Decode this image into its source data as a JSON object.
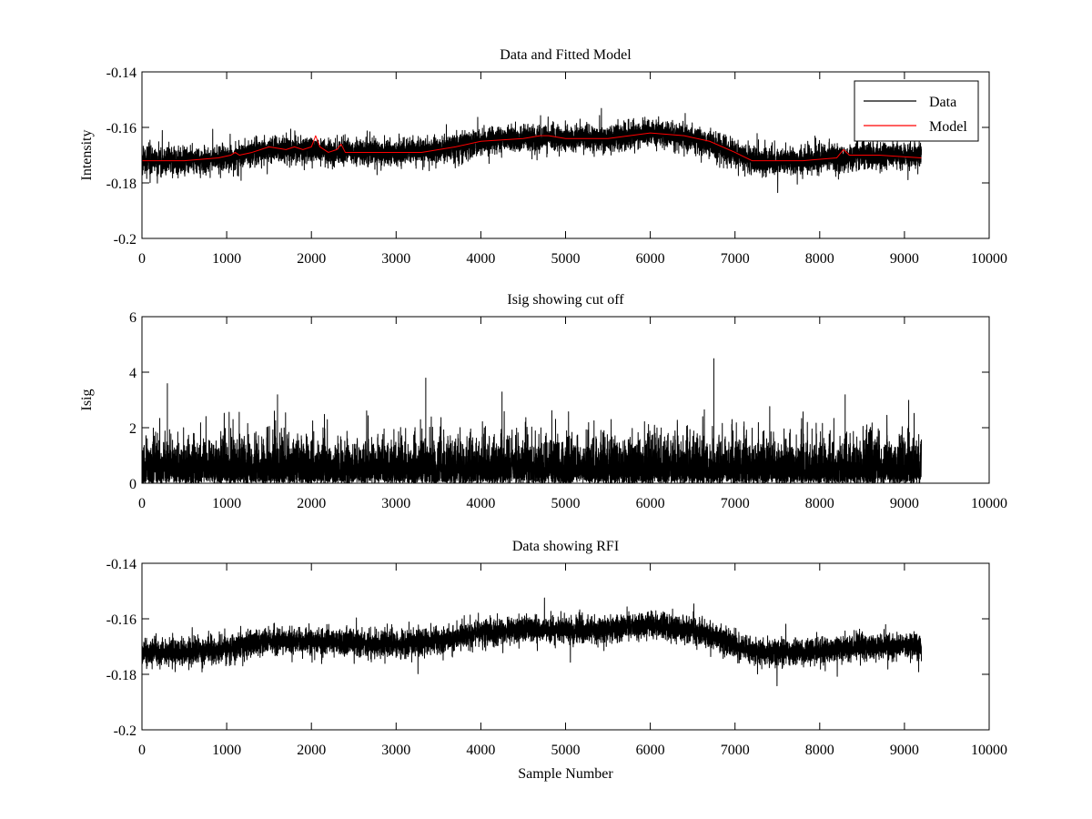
{
  "figure": {
    "background": "#ffffff"
  },
  "chart_data": [
    {
      "type": "line",
      "title": "Data and Fitted Model",
      "xlabel": "",
      "ylabel": "Intensity",
      "xlim": [
        0,
        10000
      ],
      "ylim": [
        -0.2,
        -0.14
      ],
      "y_reversed": true,
      "xticks": [
        0,
        1000,
        2000,
        3000,
        4000,
        5000,
        6000,
        7000,
        8000,
        9000,
        10000
      ],
      "xtick_labels": [
        "0",
        "1000",
        "2000",
        "3000",
        "4000",
        "5000",
        "6000",
        "7000",
        "8000",
        "9000",
        "10000"
      ],
      "yticks": [
        -0.14,
        -0.16,
        -0.18,
        -0.2
      ],
      "ytick_labels": [
        "-0.14",
        "-0.16",
        "-0.18",
        "-0.2"
      ],
      "legend": {
        "position": "top-right",
        "entries": [
          "Data",
          "Model"
        ]
      },
      "series": [
        {
          "name": "Data",
          "color": "#000000",
          "noise_amplitude": 0.0045,
          "spike_amplitude": 0.008,
          "points": [
            [
              0,
              -0.172
            ],
            [
              500,
              -0.172
            ],
            [
              1000,
              -0.171
            ],
            [
              1500,
              -0.168
            ],
            [
              2000,
              -0.168
            ],
            [
              2500,
              -0.169
            ],
            [
              3000,
              -0.169
            ],
            [
              3500,
              -0.168
            ],
            [
              4000,
              -0.165
            ],
            [
              4500,
              -0.164
            ],
            [
              5000,
              -0.164
            ],
            [
              5500,
              -0.164
            ],
            [
              6000,
              -0.162
            ],
            [
              6500,
              -0.164
            ],
            [
              6800,
              -0.167
            ],
            [
              7200,
              -0.172
            ],
            [
              7800,
              -0.172
            ],
            [
              8200,
              -0.171
            ],
            [
              8500,
              -0.17
            ],
            [
              9000,
              -0.17
            ],
            [
              9200,
              -0.17
            ]
          ]
        },
        {
          "name": "Model",
          "color": "#ff0000",
          "points": [
            [
              0,
              -0.172
            ],
            [
              500,
              -0.172
            ],
            [
              900,
              -0.171
            ],
            [
              1050,
              -0.17
            ],
            [
              1100,
              -0.169
            ],
            [
              1150,
              -0.17
            ],
            [
              1300,
              -0.169
            ],
            [
              1500,
              -0.167
            ],
            [
              1700,
              -0.168
            ],
            [
              1800,
              -0.167
            ],
            [
              1900,
              -0.168
            ],
            [
              2000,
              -0.167
            ],
            [
              2050,
              -0.163
            ],
            [
              2100,
              -0.167
            ],
            [
              2200,
              -0.169
            ],
            [
              2300,
              -0.168
            ],
            [
              2350,
              -0.166
            ],
            [
              2400,
              -0.169
            ],
            [
              2800,
              -0.169
            ],
            [
              3300,
              -0.169
            ],
            [
              3700,
              -0.167
            ],
            [
              4000,
              -0.165
            ],
            [
              4500,
              -0.164
            ],
            [
              4700,
              -0.163
            ],
            [
              4800,
              -0.163
            ],
            [
              5000,
              -0.164
            ],
            [
              5500,
              -0.164
            ],
            [
              6000,
              -0.162
            ],
            [
              6400,
              -0.163
            ],
            [
              6700,
              -0.165
            ],
            [
              7000,
              -0.169
            ],
            [
              7200,
              -0.172
            ],
            [
              7800,
              -0.172
            ],
            [
              8200,
              -0.171
            ],
            [
              8280,
              -0.168
            ],
            [
              8350,
              -0.17
            ],
            [
              8700,
              -0.17
            ],
            [
              9200,
              -0.171
            ]
          ]
        }
      ]
    },
    {
      "type": "line",
      "title": "Isig showing cut off",
      "xlabel": "",
      "ylabel": "Isig",
      "xlim": [
        0,
        10000
      ],
      "ylim": [
        0,
        6
      ],
      "xticks": [
        0,
        1000,
        2000,
        3000,
        4000,
        5000,
        6000,
        7000,
        8000,
        9000,
        10000
      ],
      "xtick_labels": [
        "0",
        "1000",
        "2000",
        "3000",
        "4000",
        "5000",
        "6000",
        "7000",
        "8000",
        "9000",
        "10000"
      ],
      "yticks": [
        0,
        2,
        4,
        6
      ],
      "ytick_labels": [
        "0",
        "2",
        "4",
        "6"
      ],
      "series": [
        {
          "name": "Isig",
          "color": "#000000",
          "x_range": [
            0,
            9200
          ],
          "typical_range": [
            0,
            1.6
          ],
          "peaks": [
            [
              300,
              3.6
            ],
            [
              1600,
              3.2
            ],
            [
              3350,
              3.8
            ],
            [
              4250,
              3.3
            ],
            [
              6750,
              4.5
            ],
            [
              8300,
              3.2
            ],
            [
              9050,
              3.0
            ]
          ]
        }
      ]
    },
    {
      "type": "line",
      "title": "Data showing RFI",
      "xlabel": "Sample Number",
      "ylabel": "",
      "xlim": [
        0,
        10000
      ],
      "ylim": [
        -0.2,
        -0.14
      ],
      "y_reversed": true,
      "xticks": [
        0,
        1000,
        2000,
        3000,
        4000,
        5000,
        6000,
        7000,
        8000,
        9000,
        10000
      ],
      "xtick_labels": [
        "0",
        "1000",
        "2000",
        "3000",
        "4000",
        "5000",
        "6000",
        "7000",
        "8000",
        "9000",
        "10000"
      ],
      "yticks": [
        -0.14,
        -0.16,
        -0.18,
        -0.2
      ],
      "ytick_labels": [
        "-0.14",
        "-0.16",
        "-0.18",
        "-0.2"
      ],
      "series": [
        {
          "name": "Data",
          "color": "#000000",
          "noise_amplitude": 0.0045,
          "spike_amplitude": 0.008,
          "points": [
            [
              0,
              -0.172
            ],
            [
              500,
              -0.172
            ],
            [
              1000,
              -0.171
            ],
            [
              1500,
              -0.168
            ],
            [
              2000,
              -0.168
            ],
            [
              2500,
              -0.169
            ],
            [
              3000,
              -0.169
            ],
            [
              3500,
              -0.168
            ],
            [
              4000,
              -0.165
            ],
            [
              4500,
              -0.164
            ],
            [
              5000,
              -0.164
            ],
            [
              5500,
              -0.164
            ],
            [
              6000,
              -0.162
            ],
            [
              6500,
              -0.164
            ],
            [
              6800,
              -0.167
            ],
            [
              7200,
              -0.172
            ],
            [
              7800,
              -0.172
            ],
            [
              8200,
              -0.171
            ],
            [
              8500,
              -0.17
            ],
            [
              9000,
              -0.17
            ],
            [
              9200,
              -0.17
            ]
          ]
        }
      ]
    }
  ]
}
